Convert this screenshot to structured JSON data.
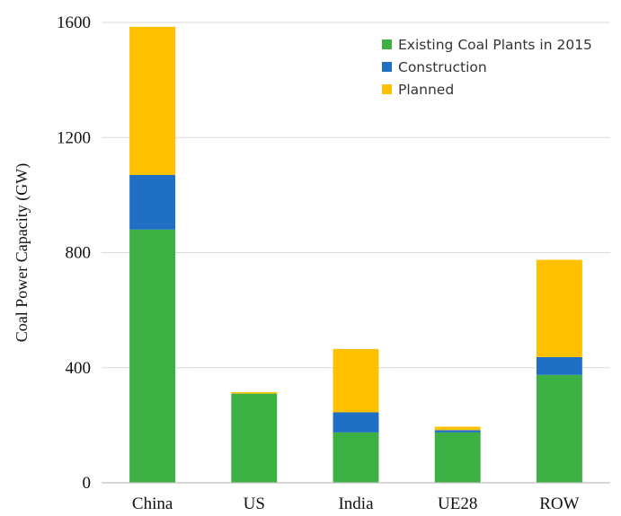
{
  "chart_data": {
    "type": "bar",
    "stacked": true,
    "categories": [
      "China",
      "US",
      "India",
      "UE28",
      "ROW"
    ],
    "series": [
      {
        "name": "Existing Coal Plants in 2015",
        "values": [
          880,
          310,
          175,
          175,
          375
        ]
      },
      {
        "name": "Construction",
        "values": [
          190,
          0,
          70,
          8,
          62
        ]
      },
      {
        "name": "Planned",
        "values": [
          515,
          5,
          220,
          12,
          338
        ]
      }
    ],
    "colors": [
      "#3cb043",
      "#1f6fc5",
      "#ffc000"
    ],
    "xlabel": "",
    "ylabel": "Coal Power Capacity (GW)",
    "ylim": [
      0,
      1600
    ],
    "yticks": [
      0,
      400,
      800,
      1200,
      1600
    ],
    "grid": true,
    "legend_position": "top-right"
  }
}
